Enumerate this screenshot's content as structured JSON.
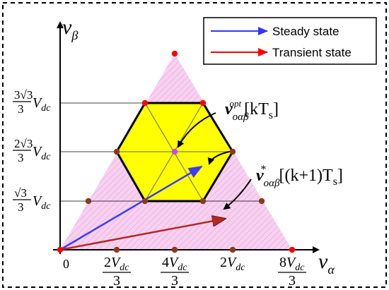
{
  "axes": {
    "v_alpha": {
      "base": "v",
      "sub": "α"
    },
    "v_beta": {
      "base": "v",
      "sub": "β"
    },
    "origin": "0"
  },
  "x_ticks": [
    {
      "num": "2",
      "var": "V",
      "sub": "dc",
      "den": "3"
    },
    {
      "num": "4",
      "var": "V",
      "sub": "dc",
      "den": "3"
    },
    {
      "plain": "2",
      "var": "V",
      "sub": "dc"
    },
    {
      "num": "8",
      "var": "V",
      "sub": "dc",
      "den": "3"
    }
  ],
  "y_ticks": [
    {
      "coef": "3",
      "root": "3",
      "den": "3",
      "var": "V",
      "sub": "dc"
    },
    {
      "coef": "2",
      "root": "3",
      "den": "3",
      "var": "V",
      "sub": "dc"
    },
    {
      "coef": "",
      "root": "3",
      "den": "3",
      "var": "V",
      "sub": "dc"
    }
  ],
  "legend": {
    "steady": {
      "label": "Steady state",
      "color": "#3333ff"
    },
    "transient": {
      "label": "Transient state",
      "color": "#ff0000"
    }
  },
  "annotations": {
    "optimal": {
      "base": "v",
      "sub": "oαβ",
      "sup": "opt",
      "arg": "[kT",
      "arg_sub": "s",
      "arg_end": "]"
    },
    "reference": {
      "base": "v",
      "sub": "oαβ",
      "sup": "*",
      "arg": "[(k+1)T",
      "arg_sub": "s",
      "arg_end": "]"
    }
  },
  "colors": {
    "triangle": "#f6c8ee",
    "hexagon": "#ffff00",
    "steady_arrow": "#3b3bff",
    "transient_arrow": "#b52a20",
    "vertex_red": "#ff0000",
    "vertex_brown": "#8b3a1a",
    "center": "#cc44ff"
  }
}
